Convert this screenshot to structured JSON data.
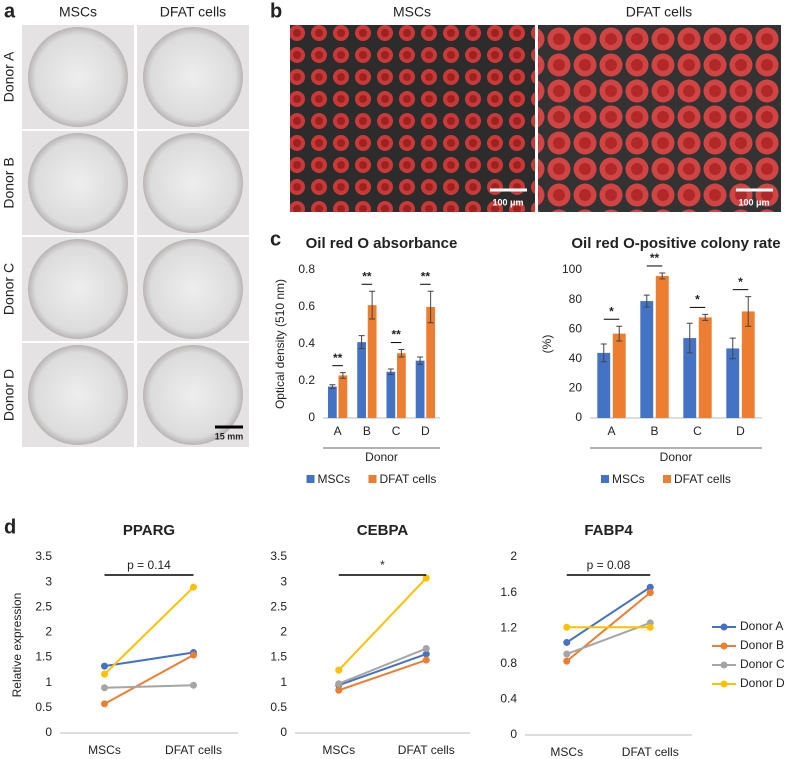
{
  "panel_labels": [
    "a",
    "b",
    "c",
    "d"
  ],
  "panel_a": {
    "columns": [
      "MSCs",
      "DFAT cells"
    ],
    "rows": [
      "Donor A",
      "Donor B",
      "Donor C",
      "Donor D"
    ],
    "scale_bar": "15 mm"
  },
  "panel_b": {
    "columns": [
      "MSCs",
      "DFAT cells"
    ],
    "scale_bars": [
      "100 μm",
      "100 μm"
    ]
  },
  "chart_data": [
    {
      "type": "bar",
      "title": "Oil red O absorbance",
      "y_label": "Optical density (510 nm)",
      "x_label": "Donor",
      "categories": [
        "A",
        "B",
        "C",
        "D"
      ],
      "series": [
        {
          "name": "MSCs",
          "color": "#4472c4",
          "values": [
            0.17,
            0.41,
            0.25,
            0.31
          ],
          "errors": [
            0.01,
            0.035,
            0.015,
            0.02
          ]
        },
        {
          "name": "DFAT cells",
          "color": "#ed7d31",
          "values": [
            0.23,
            0.61,
            0.35,
            0.6
          ],
          "errors": [
            0.015,
            0.075,
            0.02,
            0.085
          ]
        }
      ],
      "significance": [
        "**",
        "**",
        "**",
        "**"
      ],
      "ylim": [
        0,
        0.8
      ],
      "yticks": [
        0,
        0.2,
        0.4,
        0.6,
        0.8
      ],
      "legend": "bottom"
    },
    {
      "type": "bar",
      "title": "Oil red O-positive colony rate",
      "y_label": "(%)",
      "x_label": "Donor",
      "categories": [
        "A",
        "B",
        "C",
        "D"
      ],
      "series": [
        {
          "name": "MSCs",
          "color": "#4472c4",
          "values": [
            44,
            79,
            54,
            47
          ],
          "errors": [
            6,
            4,
            10,
            7
          ]
        },
        {
          "name": "DFAT cells",
          "color": "#ed7d31",
          "values": [
            57,
            96,
            68,
            72
          ],
          "errors": [
            5,
            2,
            2,
            10
          ]
        }
      ],
      "significance": [
        "*",
        "**",
        "*",
        "*"
      ],
      "ylim": [
        0,
        100
      ],
      "yticks": [
        0,
        20,
        40,
        60,
        80,
        100
      ],
      "legend": "bottom"
    },
    {
      "type": "line",
      "title": "PPARG",
      "y_label": "Relative expression",
      "categories": [
        "MSCs",
        "DFAT cells"
      ],
      "series": [
        {
          "color": "#4472c4",
          "values": [
            1.33,
            1.6
          ]
        },
        {
          "color": "#ed7d31",
          "values": [
            0.58,
            1.55
          ]
        },
        {
          "color": "#a5a5a5",
          "values": [
            0.9,
            0.95
          ]
        },
        {
          "color": "#ffc000",
          "values": [
            1.17,
            2.9
          ]
        }
      ],
      "bracket_label": "p = 0.14",
      "ylim": [
        0,
        3.5
      ],
      "yticks": [
        0,
        0.5,
        1,
        1.5,
        2,
        2.5,
        3,
        3.5
      ]
    },
    {
      "type": "line",
      "title": "CEBPA",
      "categories": [
        "MSCs",
        "DFAT cells"
      ],
      "series": [
        {
          "color": "#4472c4",
          "values": [
            0.95,
            1.57
          ]
        },
        {
          "color": "#ed7d31",
          "values": [
            0.85,
            1.45
          ]
        },
        {
          "color": "#a5a5a5",
          "values": [
            0.98,
            1.68
          ]
        },
        {
          "color": "#ffc000",
          "values": [
            1.25,
            3.08
          ]
        }
      ],
      "bracket_label": "*",
      "ylim": [
        0,
        3.5
      ],
      "yticks": [
        0,
        0.5,
        1,
        1.5,
        2,
        2.5,
        3,
        3.5
      ]
    },
    {
      "type": "line",
      "title": "FABP4",
      "categories": [
        "MSCs",
        "DFAT cells"
      ],
      "series": [
        {
          "name": "Donor A",
          "color": "#4472c4",
          "values": [
            1.04,
            1.66
          ]
        },
        {
          "name": "Donor B",
          "color": "#ed7d31",
          "values": [
            0.83,
            1.6
          ]
        },
        {
          "name": "Donor C",
          "color": "#a5a5a5",
          "values": [
            0.91,
            1.26
          ]
        },
        {
          "name": "Donor D",
          "color": "#ffc000",
          "values": [
            1.21,
            1.21
          ]
        }
      ],
      "bracket_label": "p = 0.08",
      "ylim": [
        0,
        2
      ],
      "yticks": [
        0,
        0.4,
        0.8,
        1.2,
        1.6,
        2
      ],
      "legend": "right"
    }
  ]
}
